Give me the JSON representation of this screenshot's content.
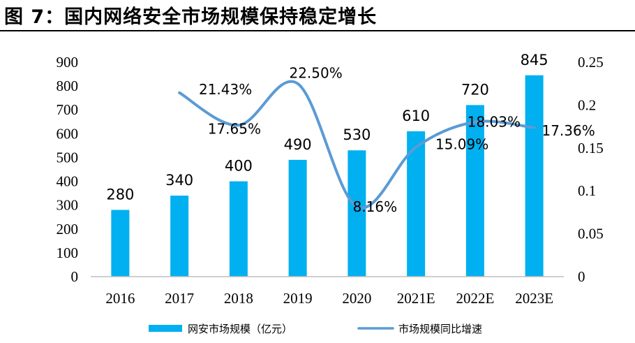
{
  "title": "图 7：国内网络安全市场规模保持稳定增长",
  "chart_data": {
    "type": "bar+line",
    "categories": [
      "2016",
      "2017",
      "2018",
      "2019",
      "2020",
      "2021E",
      "2022E",
      "2023E"
    ],
    "series": [
      {
        "name": "网安市场规模（亿元）",
        "type": "bar",
        "axis": "left",
        "values": [
          280,
          340,
          400,
          490,
          530,
          610,
          720,
          845
        ],
        "labels": [
          "280",
          "340",
          "400",
          "490",
          "530",
          "610",
          "720",
          "845"
        ],
        "color": "#00b0f0"
      },
      {
        "name": "市场规模同比增速",
        "type": "line",
        "axis": "right",
        "values": [
          null,
          0.2143,
          0.1765,
          0.225,
          0.0816,
          0.1509,
          0.1803,
          0.1736
        ],
        "labels": [
          "",
          "21.43%",
          "17.65%",
          "22.50%",
          "8.16%",
          "15.09%",
          "18.03%",
          "17.36%"
        ],
        "color": "#5b9bd5"
      }
    ],
    "y_left": {
      "ylim": [
        0,
        900
      ],
      "ticks": [
        "0",
        "100",
        "200",
        "300",
        "400",
        "500",
        "600",
        "700",
        "800",
        "900"
      ]
    },
    "y_right": {
      "ylim": [
        0,
        0.25
      ],
      "ticks": [
        "0",
        "0.05",
        "0.1",
        "0.15",
        "0.2",
        "0.25"
      ]
    },
    "grid": false,
    "legend_position": "bottom"
  }
}
